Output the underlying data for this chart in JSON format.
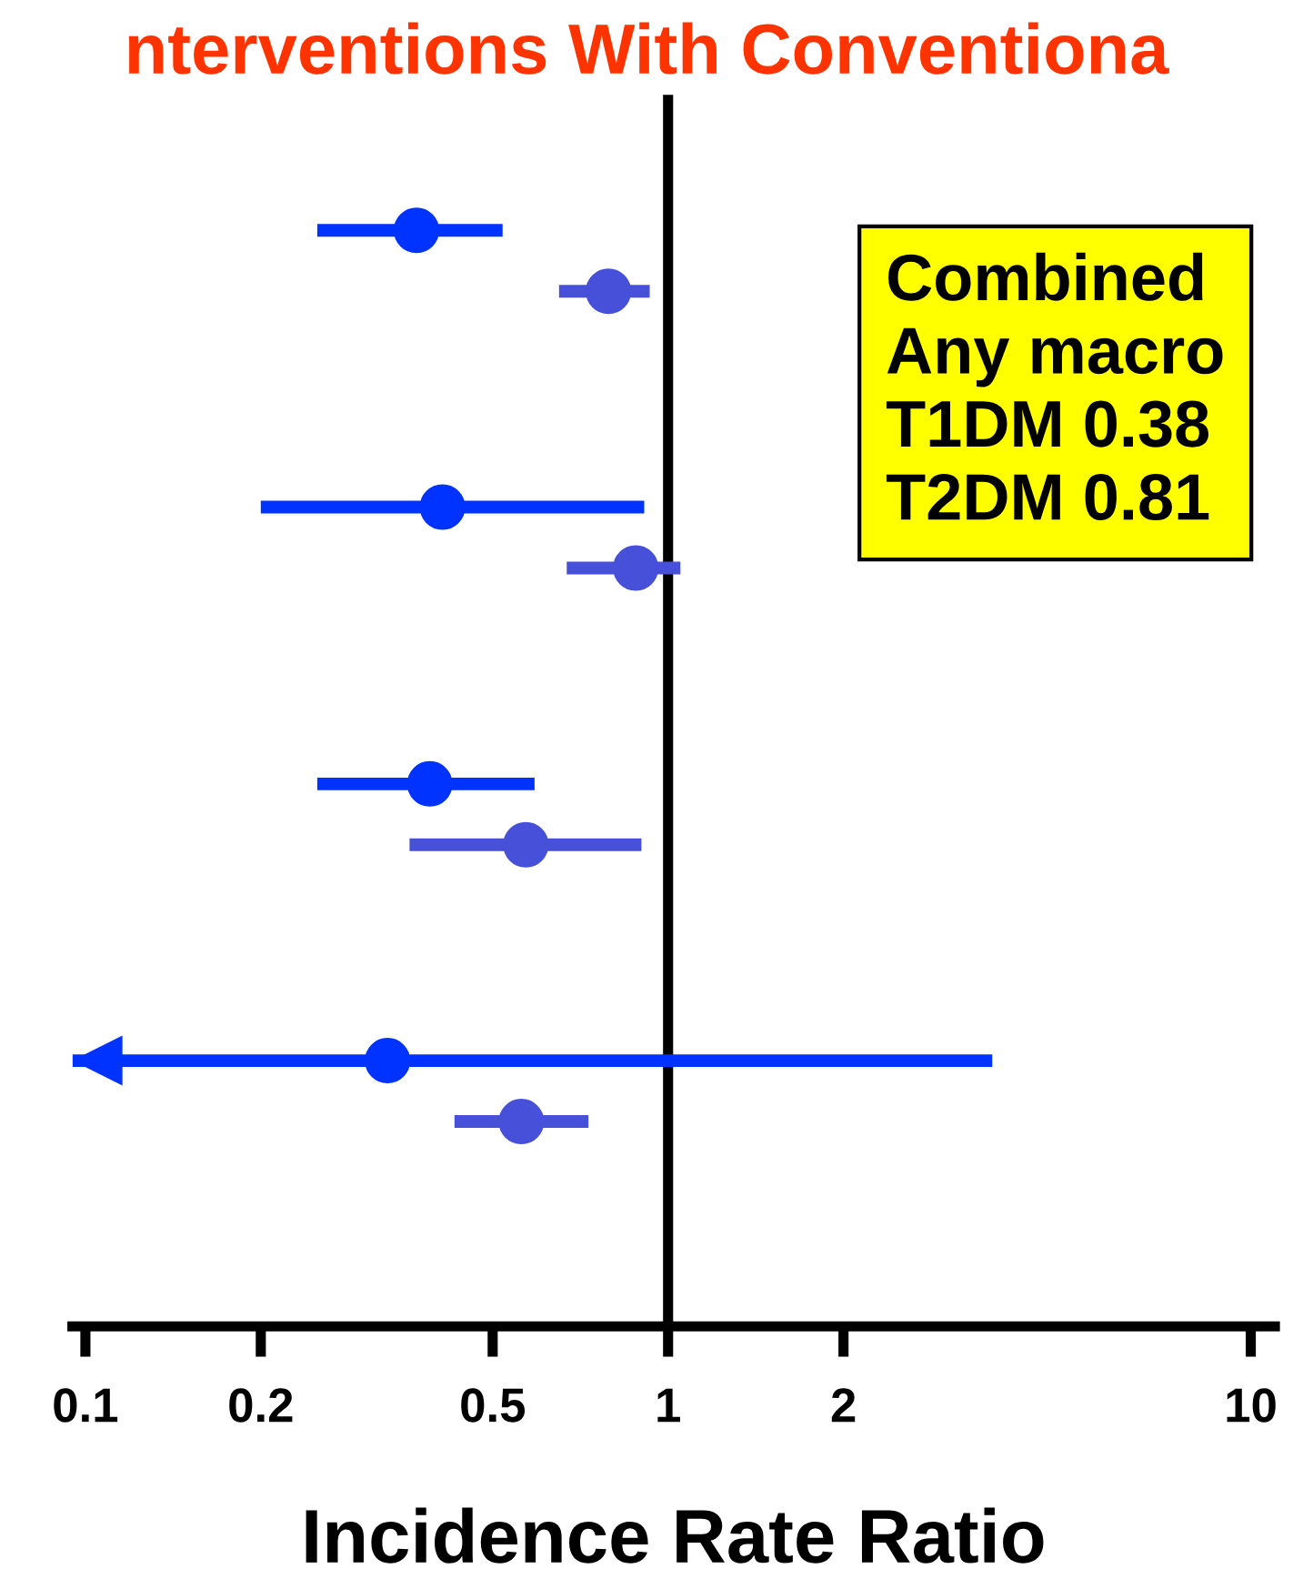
{
  "chart_data": {
    "type": "scatter",
    "orientation": "horizontal",
    "title": "nterventions With Conventiona",
    "xlabel": "Incidence Rate Ratio",
    "categories": [
      null,
      null,
      null,
      null
    ],
    "series": [
      {
        "color": "#0033ff",
        "values": [
          0.37,
          0.41,
          0.39,
          0.33
        ],
        "errors": [
          [
            0.25,
            0.52
          ],
          [
            0.2,
            0.91
          ],
          [
            0.25,
            0.59
          ],
          [
            0.095,
            3.6
          ]
        ]
      },
      {
        "color": "#4650d8",
        "values": [
          0.79,
          0.88,
          0.57,
          0.56
        ],
        "errors": [
          [
            0.65,
            0.93
          ],
          [
            0.67,
            1.05
          ],
          [
            0.36,
            0.9
          ],
          [
            0.43,
            0.73
          ]
        ]
      }
    ],
    "log": "x",
    "xlim": [
      0.095,
      11
    ],
    "xticks": [
      0.1,
      0.2,
      0.5,
      1,
      2,
      10
    ],
    "tick_labels": "x",
    "marker": "circle",
    "grid": false,
    "legend": false,
    "ref_lines": [
      {
        "axis": "x",
        "value": 1,
        "color": "#000000"
      }
    ],
    "annotations": [
      "Combined",
      "Any macro",
      "T1DM 0.38",
      "T2DM 0.81"
    ]
  }
}
